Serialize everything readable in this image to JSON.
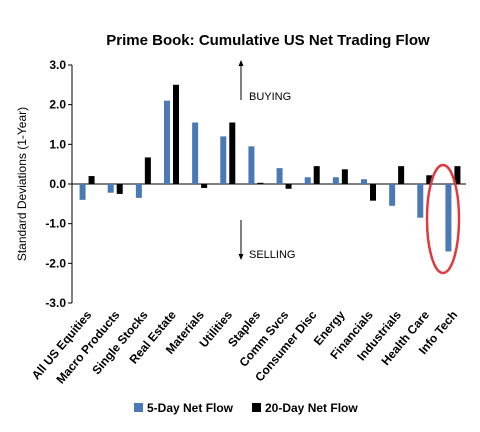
{
  "chart_data": {
    "type": "bar",
    "title": "Prime Book: Cumulative US Net Trading Flow",
    "ylabel": "Standard Deviations (1-Year)",
    "xlabel": "",
    "ylim": [
      -3.0,
      3.0
    ],
    "yticks": [
      "3.0",
      "2.0",
      "1.0",
      "0.0",
      "-1.0",
      "-2.0",
      "-3.0"
    ],
    "grid": false,
    "legend_position": "bottom",
    "categories": [
      "All US Equities",
      "Macro Products",
      "Single Stocks",
      "Real Estate",
      "Materials",
      "Utilities",
      "Staples",
      "Comm Svcs",
      "Consumer Disc",
      "Energy",
      "Financials",
      "Industrials",
      "Health Care",
      "Info Tech"
    ],
    "series": [
      {
        "name": "5-Day Net Flow",
        "color": "#4a7ab5",
        "values": [
          -0.4,
          -0.22,
          -0.35,
          2.1,
          1.55,
          1.2,
          0.95,
          0.4,
          0.17,
          0.17,
          0.12,
          -0.55,
          -0.85,
          -1.7
        ]
      },
      {
        "name": "20-Day Net Flow",
        "color": "#000000",
        "values": [
          0.2,
          -0.25,
          0.67,
          2.5,
          -0.1,
          1.55,
          0.03,
          -0.12,
          0.45,
          0.37,
          -0.42,
          0.45,
          0.22,
          0.45
        ]
      }
    ],
    "annotations": [
      {
        "text": "BUYING",
        "direction": "up"
      },
      {
        "text": "SELLING",
        "direction": "down"
      }
    ],
    "highlight": {
      "category": "Info Tech",
      "shape": "ellipse",
      "color": "#e0393e"
    }
  }
}
